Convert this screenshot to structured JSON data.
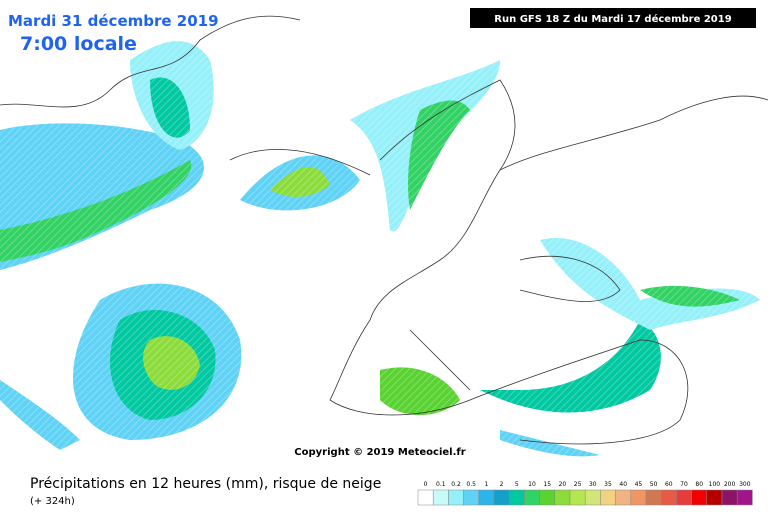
{
  "header": {
    "date": "Mardi 31 décembre 2019",
    "time": "7:00 locale",
    "run": "Run GFS 18 Z du Mardi 17 décembre 2019"
  },
  "copyright": "Copyright © 2019 Meteociel.fr",
  "footer": {
    "title": "Précipitations en 12 heures (mm), risque de neige",
    "lead": "(+ 324h)"
  },
  "legend": [
    {
      "label": "0",
      "color": "#ffffff"
    },
    {
      "label": "0.1",
      "color": "#c8fafa"
    },
    {
      "label": "0.2",
      "color": "#96f0fa"
    },
    {
      "label": "0.5",
      "color": "#5fd2f5"
    },
    {
      "label": "1",
      "color": "#2db4eb"
    },
    {
      "label": "2",
      "color": "#14a0c8"
    },
    {
      "label": "5",
      "color": "#00c8a0"
    },
    {
      "label": "10",
      "color": "#32d264"
    },
    {
      "label": "15",
      "color": "#5ad232"
    },
    {
      "label": "20",
      "color": "#8cdc3c"
    },
    {
      "label": "25",
      "color": "#b4e650"
    },
    {
      "label": "30",
      "color": "#d2e678"
    },
    {
      "label": "35",
      "color": "#f0d282"
    },
    {
      "label": "40",
      "color": "#f0b482"
    },
    {
      "label": "45",
      "color": "#f09664"
    },
    {
      "label": "50",
      "color": "#d27850"
    },
    {
      "label": "60",
      "color": "#e65a46"
    },
    {
      "label": "70",
      "color": "#e63c3c"
    },
    {
      "label": "80",
      "color": "#f00000"
    },
    {
      "label": "100",
      "color": "#b40000"
    },
    {
      "label": "200",
      "color": "#8c1464"
    },
    {
      "label": "300",
      "color": "#a0148c"
    }
  ]
}
